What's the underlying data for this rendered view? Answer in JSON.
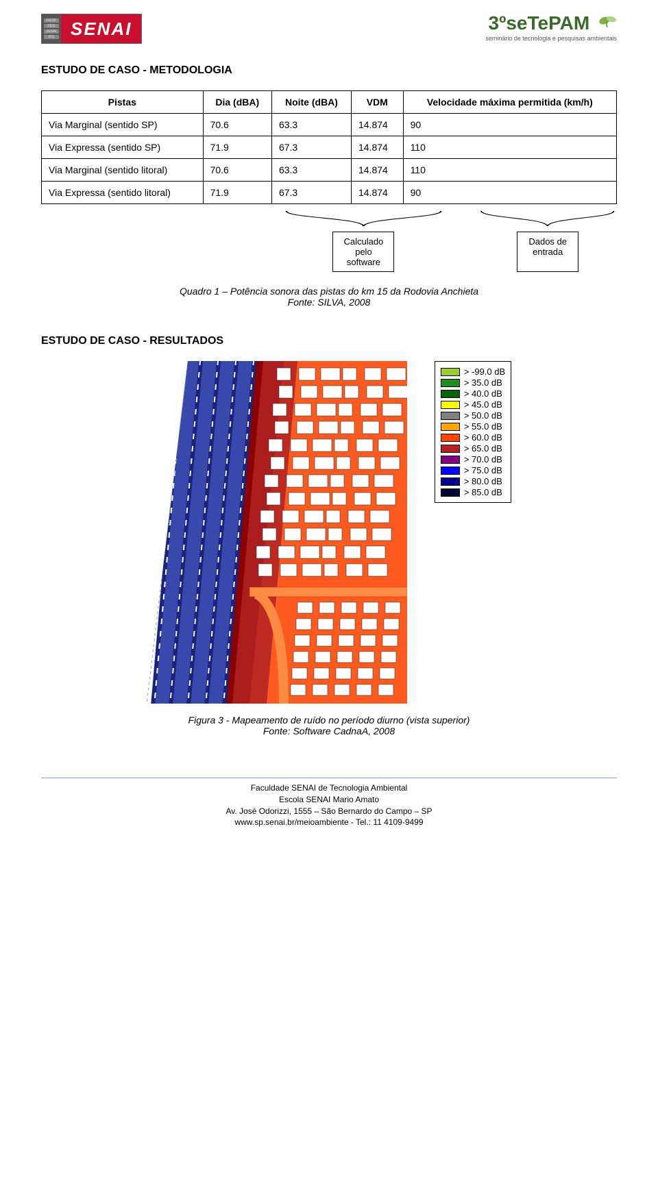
{
  "logos": {
    "senai_text": "SENAI",
    "senai_side": [
      "FIESP",
      "SESI",
      "SENAI",
      "IRS"
    ],
    "setepam_main": "3ºseTePAM",
    "setepam_sub": "seminário de tecnologia e pesquisas ambientais"
  },
  "section1_title": "ESTUDO DE CASO -  METODOLOGIA",
  "table": {
    "headers": [
      "Pistas",
      "Dia (dBA)",
      "Noite (dBA)",
      "VDM",
      "Velocidade máxima permitida (km/h)"
    ],
    "rows": [
      [
        "Via Marginal (sentido SP)",
        "70.6",
        "63.3",
        "14.874",
        "90"
      ],
      [
        "Via Expressa (sentido SP)",
        "71.9",
        "67.3",
        "14.874",
        "110"
      ],
      [
        "Via Marginal (sentido litoral)",
        "70.6",
        "63.3",
        "14.874",
        "110"
      ],
      [
        "Via Expressa (sentido litoral)",
        "71.9",
        "67.3",
        "14.874",
        "90"
      ]
    ],
    "bracket_label_left": "Calculado pelo software",
    "bracket_label_right": "Dados de entrada"
  },
  "caption1_line1": "Quadro 1 – Potência sonora das pistas do km 15 da Rodovia Anchieta",
  "caption1_line2": "Fonte: SILVA, 2008",
  "section2_title": "ESTUDO DE CASO -  RESULTADOS",
  "noise_map": {
    "lanes": {
      "count": 4,
      "colors": {
        "outer": "#1a237e",
        "lane": "#3949ab",
        "stripe": "#ffffff"
      }
    },
    "background_right": "#ff5a1f",
    "building_color": "#ffffff",
    "contour_colors": [
      "#8b0000",
      "#ff8c42",
      "#ff5a1f",
      "#b22222"
    ],
    "legend": [
      {
        "label": "> -99.0 dB",
        "color": "#9acd32"
      },
      {
        "label": "> 35.0 dB",
        "color": "#228b22"
      },
      {
        "label": "> 40.0 dB",
        "color": "#006400"
      },
      {
        "label": "> 45.0 dB",
        "color": "#ffff00"
      },
      {
        "label": "> 50.0 dB",
        "color": "#808080"
      },
      {
        "label": "> 55.0 dB",
        "color": "#ffa500"
      },
      {
        "label": "> 60.0 dB",
        "color": "#ff4500"
      },
      {
        "label": "> 65.0 dB",
        "color": "#b22222"
      },
      {
        "label": "> 70.0 dB",
        "color": "#800080"
      },
      {
        "label": "> 75.0 dB",
        "color": "#0000ff"
      },
      {
        "label": "> 80.0 dB",
        "color": "#00008b"
      },
      {
        "label": "> 85.0 dB",
        "color": "#000033"
      }
    ]
  },
  "caption2_line1": "Figura 3 - Mapeamento de ruído no período diurno (vista superior)",
  "caption2_line2": "Fonte: Software CadnaA, 2008",
  "footer": {
    "line1": "Faculdade SENAI de Tecnologia Ambiental",
    "line2": "Escola SENAI Mario Amato",
    "line3": "Av. José Odorizzi, 1555 – São Bernardo do Campo – SP",
    "line4": "www.sp.senai.br/meioambiente  -  Tel.: 11 4109-9499"
  }
}
